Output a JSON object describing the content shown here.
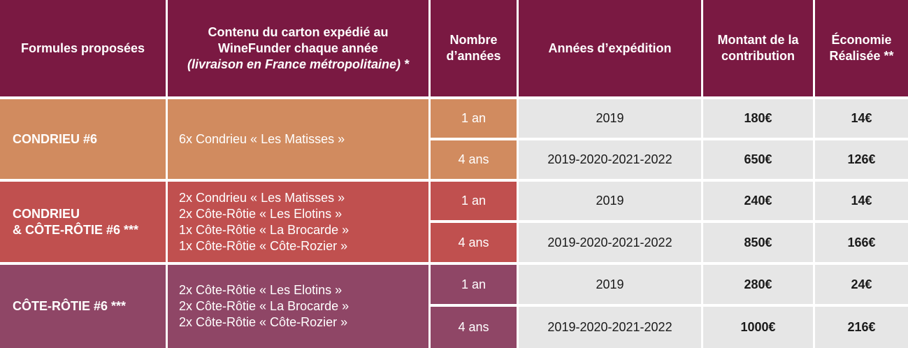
{
  "table": {
    "headers": {
      "formulas": "Formules proposées",
      "content_line1": "Contenu du carton expédié au",
      "content_line2": "WineFunder chaque année",
      "content_line3": "(livraison en France métropolitaine) *",
      "years_line1": "Nombre",
      "years_line2": "d’années",
      "shipping_years": "Années d’expédition",
      "amount_line1": "Montant de la",
      "amount_line2": "contribution",
      "savings_line1": "Économie",
      "savings_line2": "Réalisée **"
    },
    "groups": [
      {
        "formula_line1": "CONDRIEU #6",
        "formula_line2": "",
        "content": [
          "6x Condrieu « Les Matisses »"
        ],
        "rows": [
          {
            "years": "1 an",
            "shipping": "2019",
            "amount": "180€",
            "savings": "14€"
          },
          {
            "years": "4 ans",
            "shipping": "2019-2020-2021-2022",
            "amount": "650€",
            "savings": "126€"
          }
        ]
      },
      {
        "formula_line1": "CONDRIEU",
        "formula_line2": "& CÔTE-RÔTIE #6 ***",
        "content": [
          "2x Condrieu « Les Matisses »",
          "2x Côte-Rôtie « Les Elotins »",
          "1x Côte-Rôtie « La Brocarde »",
          "1x Côte-Rôtie « Côte-Rozier »"
        ],
        "rows": [
          {
            "years": "1 an",
            "shipping": "2019",
            "amount": "240€",
            "savings": "14€"
          },
          {
            "years": "4 ans",
            "shipping": "2019-2020-2021-2022",
            "amount": "850€",
            "savings": "166€"
          }
        ]
      },
      {
        "formula_line1": "CÔTE-RÔTIE #6 ***",
        "formula_line2": "",
        "content": [
          "2x Côte-Rôtie « Les Elotins »",
          "2x Côte-Rôtie « La Brocarde »",
          "2x Côte-Rôtie « Côte-Rozier »"
        ],
        "rows": [
          {
            "years": "1 an",
            "shipping": "2019",
            "amount": "280€",
            "savings": "24€"
          },
          {
            "years": "4 ans",
            "shipping": "2019-2020-2021-2022",
            "amount": "1000€",
            "savings": "216€"
          }
        ]
      }
    ],
    "colors": {
      "header": "#7a1942",
      "condrieu": "#d18b5f",
      "condrieu_cote_rotie": "#c0504f",
      "cote_rotie": "#8f4666",
      "plain_cells": "#e6e6e6"
    }
  }
}
